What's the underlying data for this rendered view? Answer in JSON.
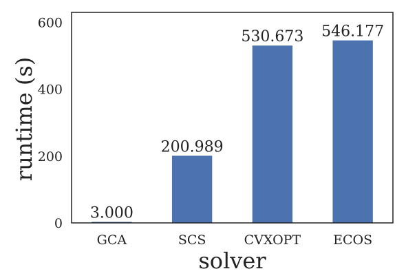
{
  "chart_data": {
    "type": "bar",
    "categories": [
      "GCA",
      "SCS",
      "CVXOPT",
      "ECOS"
    ],
    "values": [
      3.0,
      200.989,
      530.673,
      546.177
    ],
    "value_labels": [
      "3.000",
      "200.989",
      "530.673",
      "546.177"
    ],
    "xlabel": "solver",
    "ylabel": "runtime (s)",
    "ylim": [
      0,
      630
    ],
    "yticks": [
      0,
      200,
      400,
      600
    ],
    "grid": false,
    "bar_color": "#4c72b0"
  }
}
